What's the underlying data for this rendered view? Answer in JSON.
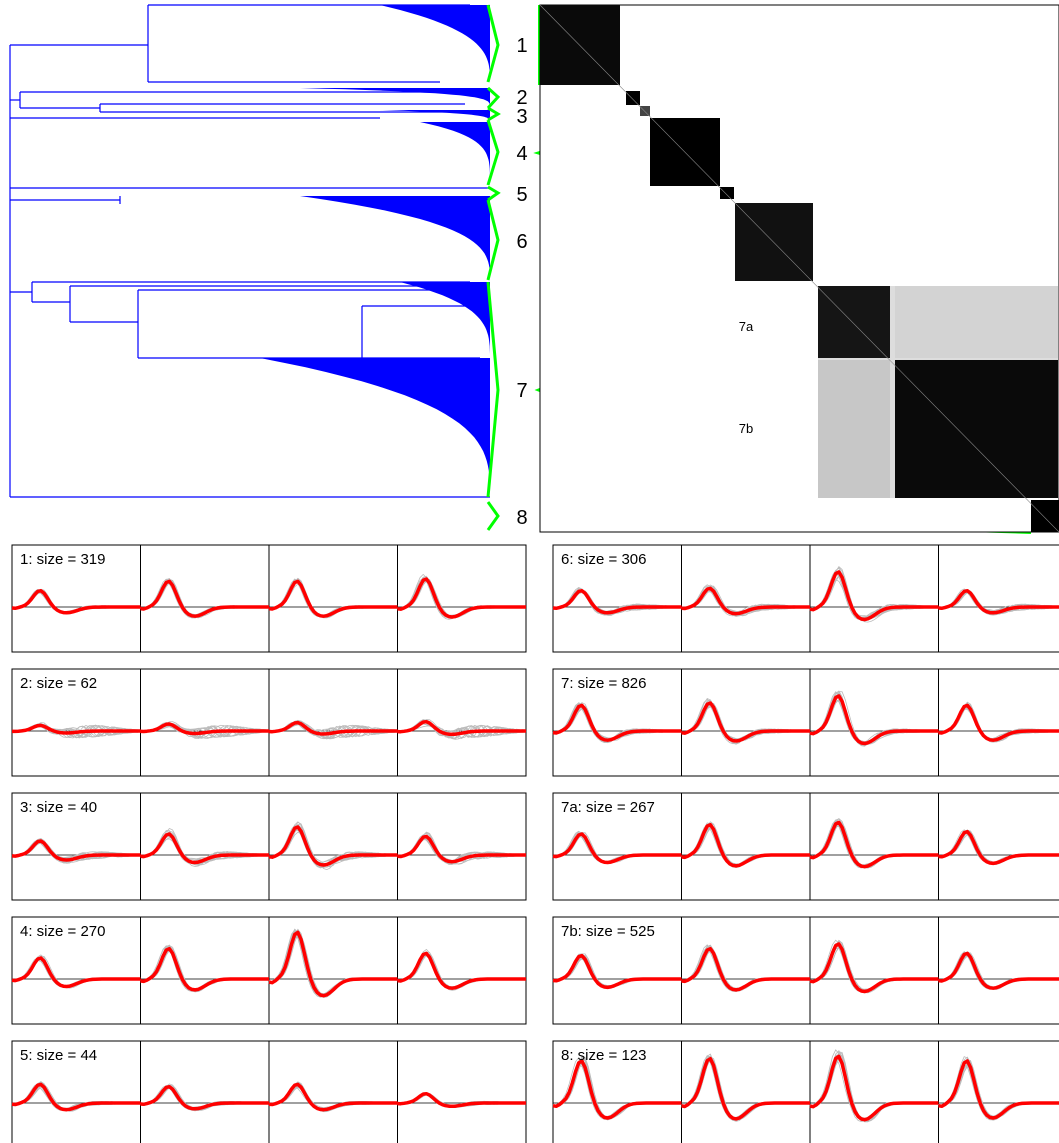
{
  "clusters": [
    {
      "id": "1",
      "size": 319
    },
    {
      "id": "2",
      "size": 62
    },
    {
      "id": "3",
      "size": 40
    },
    {
      "id": "4",
      "size": 270
    },
    {
      "id": "5",
      "size": 44
    },
    {
      "id": "6",
      "size": 306
    },
    {
      "id": "7",
      "size": 826
    },
    {
      "id": "8",
      "size": 123
    }
  ],
  "subclusters": [
    {
      "id": "7a",
      "size": 267
    },
    {
      "id": "7b",
      "size": 525
    }
  ],
  "panels": [
    {
      "title": "1: size = 319",
      "amp": [
        0.35,
        0.55,
        0.55,
        0.6
      ],
      "noise": 0.25
    },
    {
      "title": "2: size = 62",
      "amp": [
        0.12,
        0.15,
        0.18,
        0.2
      ],
      "noise": 1.0
    },
    {
      "title": "3: size = 40",
      "amp": [
        0.3,
        0.45,
        0.6,
        0.4
      ],
      "noise": 0.6
    },
    {
      "title": "4: size = 270",
      "amp": [
        0.45,
        0.65,
        1.0,
        0.55
      ],
      "noise": 0.2
    },
    {
      "title": "5: size = 44",
      "amp": [
        0.4,
        0.35,
        0.4,
        0.2
      ],
      "noise": 0.3
    },
    {
      "title": "6: size = 306",
      "amp": [
        0.35,
        0.4,
        0.75,
        0.35
      ],
      "noise": 0.5
    },
    {
      "title": "7: size = 826",
      "amp": [
        0.55,
        0.6,
        0.75,
        0.55
      ],
      "noise": 0.4
    },
    {
      "title": "7a: size = 267",
      "amp": [
        0.45,
        0.65,
        0.7,
        0.5
      ],
      "noise": 0.2
    },
    {
      "title": "7b: size = 525",
      "amp": [
        0.5,
        0.65,
        0.75,
        0.55
      ],
      "noise": 0.2
    },
    {
      "title": "8: size = 123",
      "amp": [
        0.9,
        0.95,
        1.0,
        0.9
      ],
      "noise": 0.2
    }
  ],
  "colors": {
    "dendrogram": "#0000ff",
    "connector": "#00ff00",
    "mean_waveform": "#ff0000",
    "sample_waveform": "#bbbbbb",
    "matrix": "#000000"
  }
}
